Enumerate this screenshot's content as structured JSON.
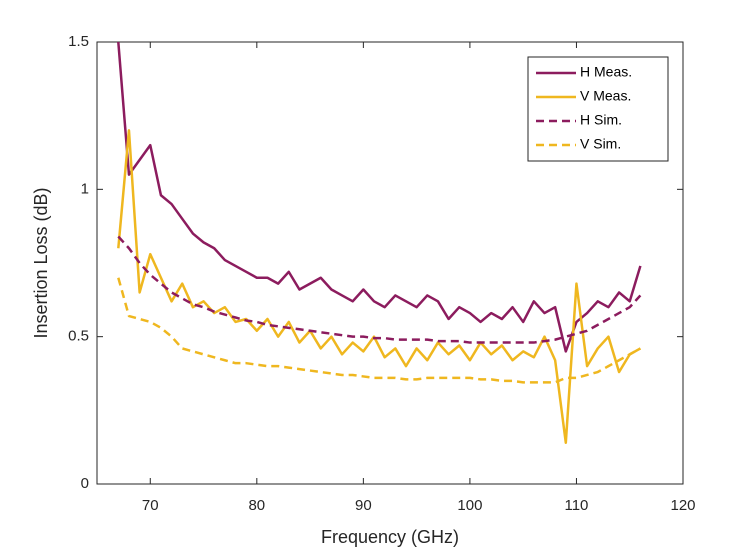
{
  "chart_data": {
    "type": "line",
    "xlabel": "Frequency (GHz)",
    "ylabel": "Insertion Loss (dB)",
    "x": [
      67,
      68,
      69,
      70,
      71,
      72,
      73,
      74,
      75,
      76,
      77,
      78,
      79,
      80,
      81,
      82,
      83,
      84,
      85,
      86,
      87,
      88,
      89,
      90,
      91,
      92,
      93,
      94,
      95,
      96,
      97,
      98,
      99,
      100,
      101,
      102,
      103,
      104,
      105,
      106,
      107,
      108,
      109,
      110,
      111,
      112,
      113,
      114,
      115,
      116
    ],
    "series": [
      {
        "name": "H Meas.",
        "color": "#8c1c5e",
        "style": "solid",
        "values": [
          1.5,
          1.05,
          1.1,
          1.15,
          0.98,
          0.95,
          0.9,
          0.85,
          0.82,
          0.8,
          0.76,
          0.74,
          0.72,
          0.7,
          0.7,
          0.68,
          0.72,
          0.66,
          0.68,
          0.7,
          0.66,
          0.64,
          0.62,
          0.66,
          0.62,
          0.6,
          0.64,
          0.62,
          0.6,
          0.64,
          0.62,
          0.56,
          0.6,
          0.58,
          0.55,
          0.58,
          0.56,
          0.6,
          0.55,
          0.62,
          0.58,
          0.6,
          0.45,
          0.55,
          0.58,
          0.62,
          0.6,
          0.65,
          0.62,
          0.74
        ]
      },
      {
        "name": "V Meas.",
        "color": "#efb71f",
        "style": "solid",
        "values": [
          0.8,
          1.2,
          0.65,
          0.78,
          0.7,
          0.62,
          0.68,
          0.6,
          0.62,
          0.58,
          0.6,
          0.55,
          0.56,
          0.52,
          0.56,
          0.5,
          0.55,
          0.48,
          0.52,
          0.46,
          0.5,
          0.44,
          0.48,
          0.45,
          0.5,
          0.43,
          0.46,
          0.4,
          0.46,
          0.42,
          0.48,
          0.44,
          0.47,
          0.42,
          0.48,
          0.44,
          0.47,
          0.42,
          0.45,
          0.43,
          0.5,
          0.42,
          0.14,
          0.68,
          0.4,
          0.46,
          0.5,
          0.38,
          0.44,
          0.46
        ]
      },
      {
        "name": "H Sim.",
        "color": "#8c1c5e",
        "style": "dashed",
        "values": [
          0.84,
          0.8,
          0.75,
          0.71,
          0.68,
          0.65,
          0.63,
          0.61,
          0.6,
          0.585,
          0.575,
          0.565,
          0.555,
          0.55,
          0.54,
          0.535,
          0.53,
          0.525,
          0.52,
          0.515,
          0.51,
          0.505,
          0.5,
          0.5,
          0.495,
          0.495,
          0.49,
          0.49,
          0.49,
          0.49,
          0.485,
          0.485,
          0.485,
          0.48,
          0.48,
          0.48,
          0.48,
          0.48,
          0.48,
          0.48,
          0.485,
          0.49,
          0.5,
          0.51,
          0.52,
          0.54,
          0.56,
          0.58,
          0.6,
          0.64
        ]
      },
      {
        "name": "V Sim.",
        "color": "#efb71f",
        "style": "dashed",
        "values": [
          0.7,
          0.57,
          0.56,
          0.55,
          0.53,
          0.5,
          0.46,
          0.45,
          0.44,
          0.43,
          0.42,
          0.41,
          0.41,
          0.405,
          0.4,
          0.4,
          0.395,
          0.39,
          0.385,
          0.38,
          0.375,
          0.37,
          0.37,
          0.365,
          0.36,
          0.36,
          0.36,
          0.355,
          0.355,
          0.36,
          0.36,
          0.36,
          0.36,
          0.36,
          0.355,
          0.355,
          0.35,
          0.35,
          0.345,
          0.345,
          0.345,
          0.345,
          0.36,
          0.36,
          0.37,
          0.38,
          0.4,
          0.42,
          0.44,
          0.46
        ]
      }
    ],
    "xlim": [
      65,
      120
    ],
    "xticks": [
      70,
      80,
      90,
      100,
      110,
      120
    ],
    "ylim": [
      0,
      1.5
    ],
    "yticks": [
      0,
      0.5,
      1,
      1.5
    ],
    "grid": false,
    "legend": "northeast"
  }
}
